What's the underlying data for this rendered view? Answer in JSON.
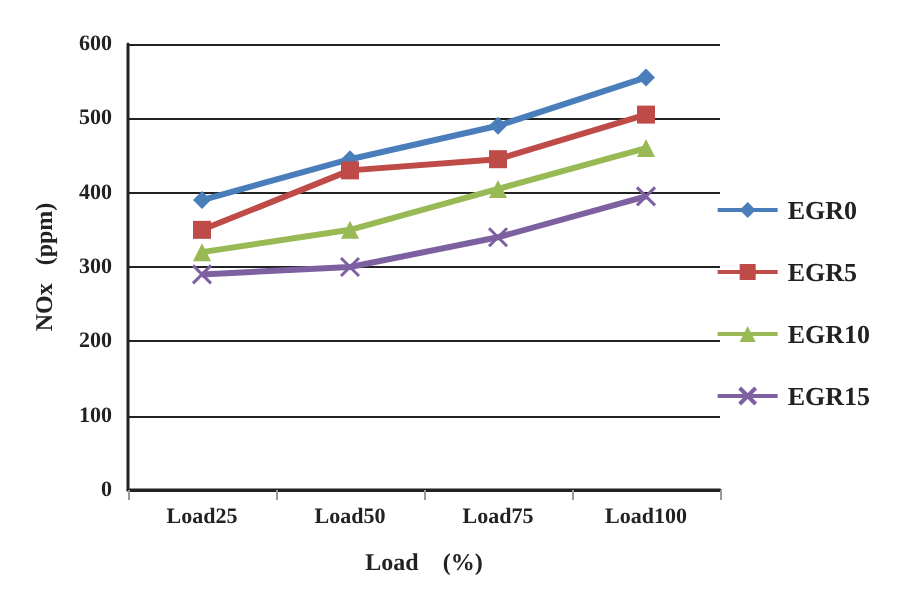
{
  "chart_data": {
    "type": "line",
    "xlabel": "Load    (%)",
    "ylabel": "NOx   (ppm)",
    "categories": [
      "Load25",
      "Load50",
      "Load75",
      "Load100"
    ],
    "ylim": [
      0,
      600
    ],
    "yticks": [
      0,
      100,
      200,
      300,
      400,
      500,
      600
    ],
    "grid": "y",
    "legend": "right",
    "series": [
      {
        "name": "EGR0",
        "color": "#4a7ebb",
        "marker": "diamond",
        "values": [
          390,
          445,
          490,
          555
        ]
      },
      {
        "name": "EGR5",
        "color": "#be4b48",
        "marker": "square",
        "values": [
          350,
          430,
          445,
          505
        ]
      },
      {
        "name": "EGR10",
        "color": "#98b954",
        "marker": "triangle",
        "values": [
          320,
          350,
          405,
          460
        ]
      },
      {
        "name": "EGR15",
        "color": "#7d60a0",
        "marker": "cross",
        "values": [
          290,
          300,
          340,
          395
        ]
      }
    ]
  }
}
